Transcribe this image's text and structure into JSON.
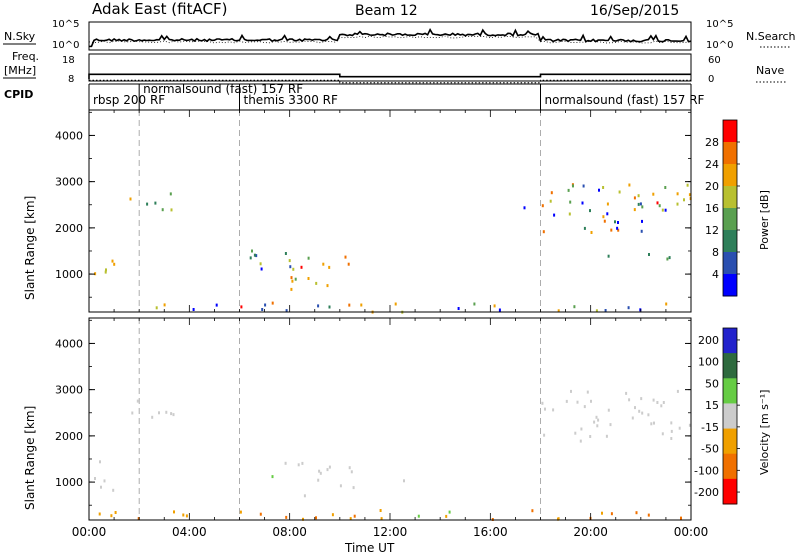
{
  "header": {
    "station": "Adak East (fitACF)",
    "beam": "Beam 12",
    "date": "16/Sep/2015"
  },
  "top_panels": {
    "nsky_label": "N.Sky",
    "nsky_ticks": [
      "10^5",
      "10^0"
    ],
    "nsearch_label": "N.Search",
    "nsearch_ticks": [
      "10^5",
      "10^0"
    ],
    "freq_label_1": "Freq.",
    "freq_label_2": "[MHz]",
    "freq_ticks": [
      "18",
      "8"
    ],
    "nave_label": "Nave",
    "nave_ticks": [
      "60",
      "0"
    ],
    "cpid_label": "CPID",
    "cpid_segments": [
      {
        "label": "rbsp 200 RF",
        "start": 0.0,
        "end": 2.0
      },
      {
        "label": "normalsound (fast) 157 RF",
        "start": 2.0,
        "end": 6.0
      },
      {
        "label": "themis 3300 RF",
        "start": 6.0,
        "end": 18.0
      },
      {
        "label": "normalsound (fast) 157 RF",
        "start": 18.0,
        "end": 24.0
      }
    ],
    "freq_steps": [
      {
        "start": 0.0,
        "end": 10.0,
        "value": 10.5
      },
      {
        "start": 10.0,
        "end": 18.0,
        "value": 9.6
      },
      {
        "start": 18.0,
        "end": 24.0,
        "value": 10.5
      }
    ]
  },
  "chart_data": [
    {
      "type": "heatmap",
      "name": "power",
      "ylabel": "Slant Range [km]",
      "yticks": [
        "1000",
        "2000",
        "3000",
        "4000"
      ],
      "ylim": [
        180,
        4550
      ],
      "xlim": [
        0,
        24
      ],
      "colorbar_label": "Power [dB]",
      "colorbar_ticks": [
        "4",
        "8",
        "12",
        "16",
        "20",
        "24",
        "28"
      ],
      "colorbar_colors": [
        "#0000ff",
        "#2a4fb0",
        "#2e7f5a",
        "#5aa050",
        "#b8c030",
        "#f0a000",
        "#f07000",
        "#ff0000"
      ],
      "regions": [
        {
          "t0": 0.0,
          "t1": 1.0,
          "r0": 800,
          "r1": 1500,
          "c": [
            3,
            6
          ]
        },
        {
          "t0": 1.4,
          "t1": 3.4,
          "r0": 2400,
          "r1": 2800,
          "c": [
            2,
            5
          ]
        },
        {
          "t0": 5.8,
          "t1": 8.6,
          "r0": 1000,
          "r1": 1600,
          "c": [
            0,
            4
          ]
        },
        {
          "t0": 8.0,
          "t1": 10.6,
          "r0": 700,
          "r1": 1500,
          "c": [
            3,
            7
          ]
        },
        {
          "t0": 12.5,
          "t1": 13.1,
          "r0": 800,
          "r1": 1100,
          "c": [
            2,
            5
          ]
        },
        {
          "t0": 0.0,
          "t1": 24.0,
          "r0": 200,
          "r1": 420,
          "c": [
            0,
            7
          ]
        },
        {
          "t0": 18.0,
          "t1": 24.0,
          "r0": 1900,
          "r1": 3000,
          "c": [
            0,
            6
          ]
        },
        {
          "t0": 22.5,
          "t1": 24.0,
          "r0": 2300,
          "r1": 2800,
          "c": [
            4,
            7
          ]
        },
        {
          "t0": 20.5,
          "t1": 24.0,
          "r0": 1300,
          "r1": 1500,
          "c": [
            1,
            3
          ]
        },
        {
          "t0": 16.8,
          "t1": 17.4,
          "r0": 2300,
          "r1": 2600,
          "c": [
            0,
            2
          ]
        }
      ]
    },
    {
      "type": "heatmap",
      "name": "velocity",
      "ylabel": "Slant Range [km]",
      "yticks": [
        "1000",
        "2000",
        "3000",
        "4000"
      ],
      "ylim": [
        180,
        4550
      ],
      "xlim": [
        0,
        24
      ],
      "xticks": [
        "00:00",
        "04:00",
        "08:00",
        "12:00",
        "16:00",
        "20:00",
        "00:00"
      ],
      "xlabel": "Time UT",
      "colorbar_label": "Velocity [m s⁻¹]",
      "colorbar_ticks": [
        "200",
        "100",
        "50",
        "15",
        "-15",
        "-50",
        "-100",
        "-200"
      ],
      "colorbar_colors": [
        "#2222cc",
        "#2e6a3e",
        "#66cc44",
        "#cccccc",
        "#f0a000",
        "#f07000",
        "#ff0000"
      ],
      "regions": [
        {
          "t0": 0.0,
          "t1": 1.0,
          "r0": 800,
          "r1": 1500,
          "c": [
            3,
            3
          ]
        },
        {
          "t0": 1.4,
          "t1": 3.4,
          "r0": 2400,
          "r1": 2800,
          "c": [
            3,
            3
          ]
        },
        {
          "t0": 6.2,
          "t1": 7.6,
          "r0": 1100,
          "r1": 1500,
          "c": [
            2,
            2
          ]
        },
        {
          "t0": 7.6,
          "t1": 10.6,
          "r0": 700,
          "r1": 1500,
          "c": [
            3,
            3
          ]
        },
        {
          "t0": 12.5,
          "t1": 13.1,
          "r0": 800,
          "r1": 1100,
          "c": [
            3,
            3
          ]
        },
        {
          "t0": 0.0,
          "t1": 24.0,
          "r0": 200,
          "r1": 420,
          "c": [
            4,
            5
          ]
        },
        {
          "t0": 13.0,
          "t1": 14.5,
          "r0": 280,
          "r1": 420,
          "c": [
            2,
            2
          ]
        },
        {
          "t0": 18.0,
          "t1": 24.0,
          "r0": 1900,
          "r1": 3000,
          "c": [
            3,
            3
          ]
        },
        {
          "t0": 16.8,
          "t1": 17.4,
          "r0": 2300,
          "r1": 2600,
          "c": [
            3,
            3
          ]
        }
      ]
    }
  ]
}
